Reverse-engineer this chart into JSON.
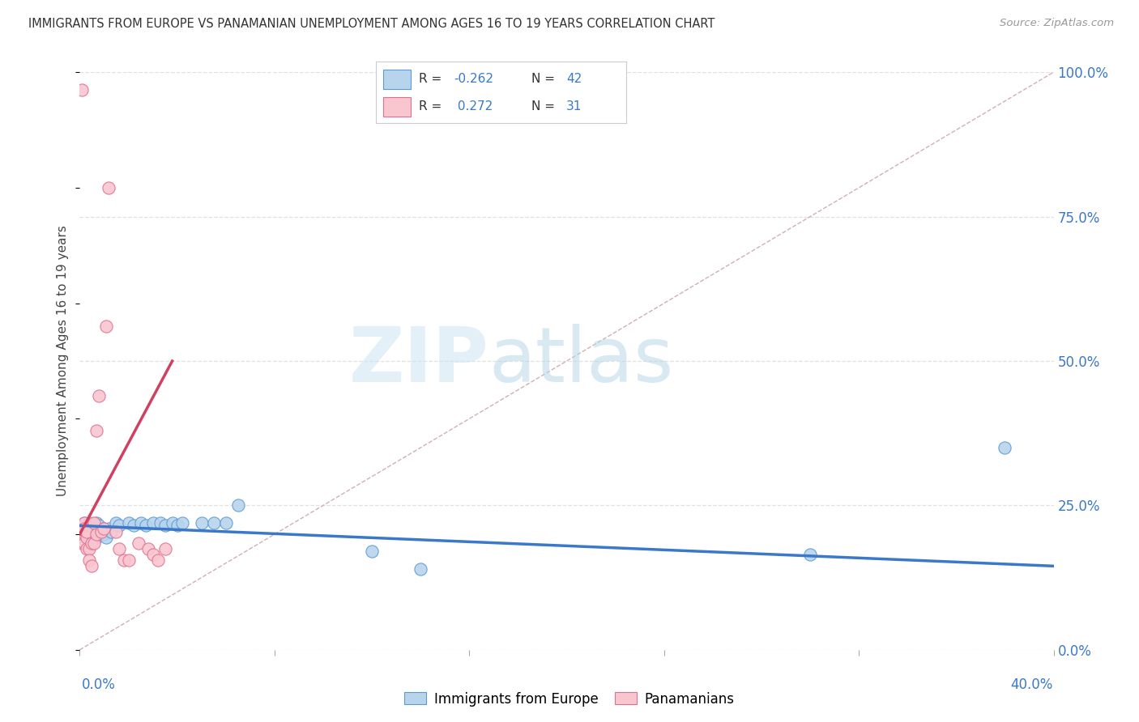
{
  "title": "IMMIGRANTS FROM EUROPE VS PANAMANIAN UNEMPLOYMENT AMONG AGES 16 TO 19 YEARS CORRELATION CHART",
  "source": "Source: ZipAtlas.com",
  "ylabel": "Unemployment Among Ages 16 to 19 years",
  "legend_labels": [
    "Immigrants from Europe",
    "Panamanians"
  ],
  "blue_fill": "#b8d4ed",
  "blue_edge": "#5b9bd5",
  "pink_fill": "#f9c6d0",
  "pink_edge": "#e07090",
  "blue_trend_color": "#3a78c9",
  "pink_trend_color": "#d04060",
  "diag_color": "#d0b0b0",
  "grid_color": "#e0e0e0",
  "xmin": 0.0,
  "xmax": 0.4,
  "ymin": 0.0,
  "ymax": 1.0,
  "blue_x": [
    0.001,
    0.002,
    0.002,
    0.003,
    0.003,
    0.003,
    0.004,
    0.004,
    0.005,
    0.005,
    0.006,
    0.006,
    0.007,
    0.007,
    0.008,
    0.008,
    0.009,
    0.01,
    0.01,
    0.011,
    0.012,
    0.013,
    0.015,
    0.016,
    0.02,
    0.022,
    0.025,
    0.027,
    0.03,
    0.033,
    0.035,
    0.038,
    0.04,
    0.042,
    0.05,
    0.055,
    0.06,
    0.065,
    0.12,
    0.14,
    0.3,
    0.38
  ],
  "blue_y": [
    0.2,
    0.22,
    0.19,
    0.21,
    0.2,
    0.18,
    0.22,
    0.2,
    0.21,
    0.19,
    0.205,
    0.21,
    0.195,
    0.22,
    0.2,
    0.215,
    0.205,
    0.2,
    0.21,
    0.195,
    0.21,
    0.205,
    0.22,
    0.215,
    0.22,
    0.215,
    0.22,
    0.215,
    0.22,
    0.22,
    0.215,
    0.22,
    0.215,
    0.22,
    0.22,
    0.22,
    0.22,
    0.25,
    0.17,
    0.14,
    0.165,
    0.35
  ],
  "pink_x": [
    0.001,
    0.001,
    0.001,
    0.002,
    0.002,
    0.002,
    0.003,
    0.003,
    0.003,
    0.004,
    0.004,
    0.005,
    0.005,
    0.006,
    0.006,
    0.007,
    0.007,
    0.008,
    0.009,
    0.01,
    0.011,
    0.012,
    0.015,
    0.016,
    0.018,
    0.02,
    0.024,
    0.028,
    0.03,
    0.032,
    0.035
  ],
  "pink_y": [
    0.97,
    0.2,
    0.185,
    0.22,
    0.21,
    0.185,
    0.195,
    0.205,
    0.175,
    0.175,
    0.155,
    0.185,
    0.145,
    0.22,
    0.185,
    0.38,
    0.2,
    0.44,
    0.205,
    0.21,
    0.56,
    0.8,
    0.205,
    0.175,
    0.155,
    0.155,
    0.185,
    0.175,
    0.165,
    0.155,
    0.175
  ],
  "blue_trend_x0": 0.0,
  "blue_trend_x1": 0.4,
  "blue_trend_y0": 0.215,
  "blue_trend_y1": 0.145,
  "pink_trend_x0": 0.0,
  "pink_trend_x1": 0.038,
  "pink_trend_y0": 0.2,
  "pink_trend_y1": 0.5
}
